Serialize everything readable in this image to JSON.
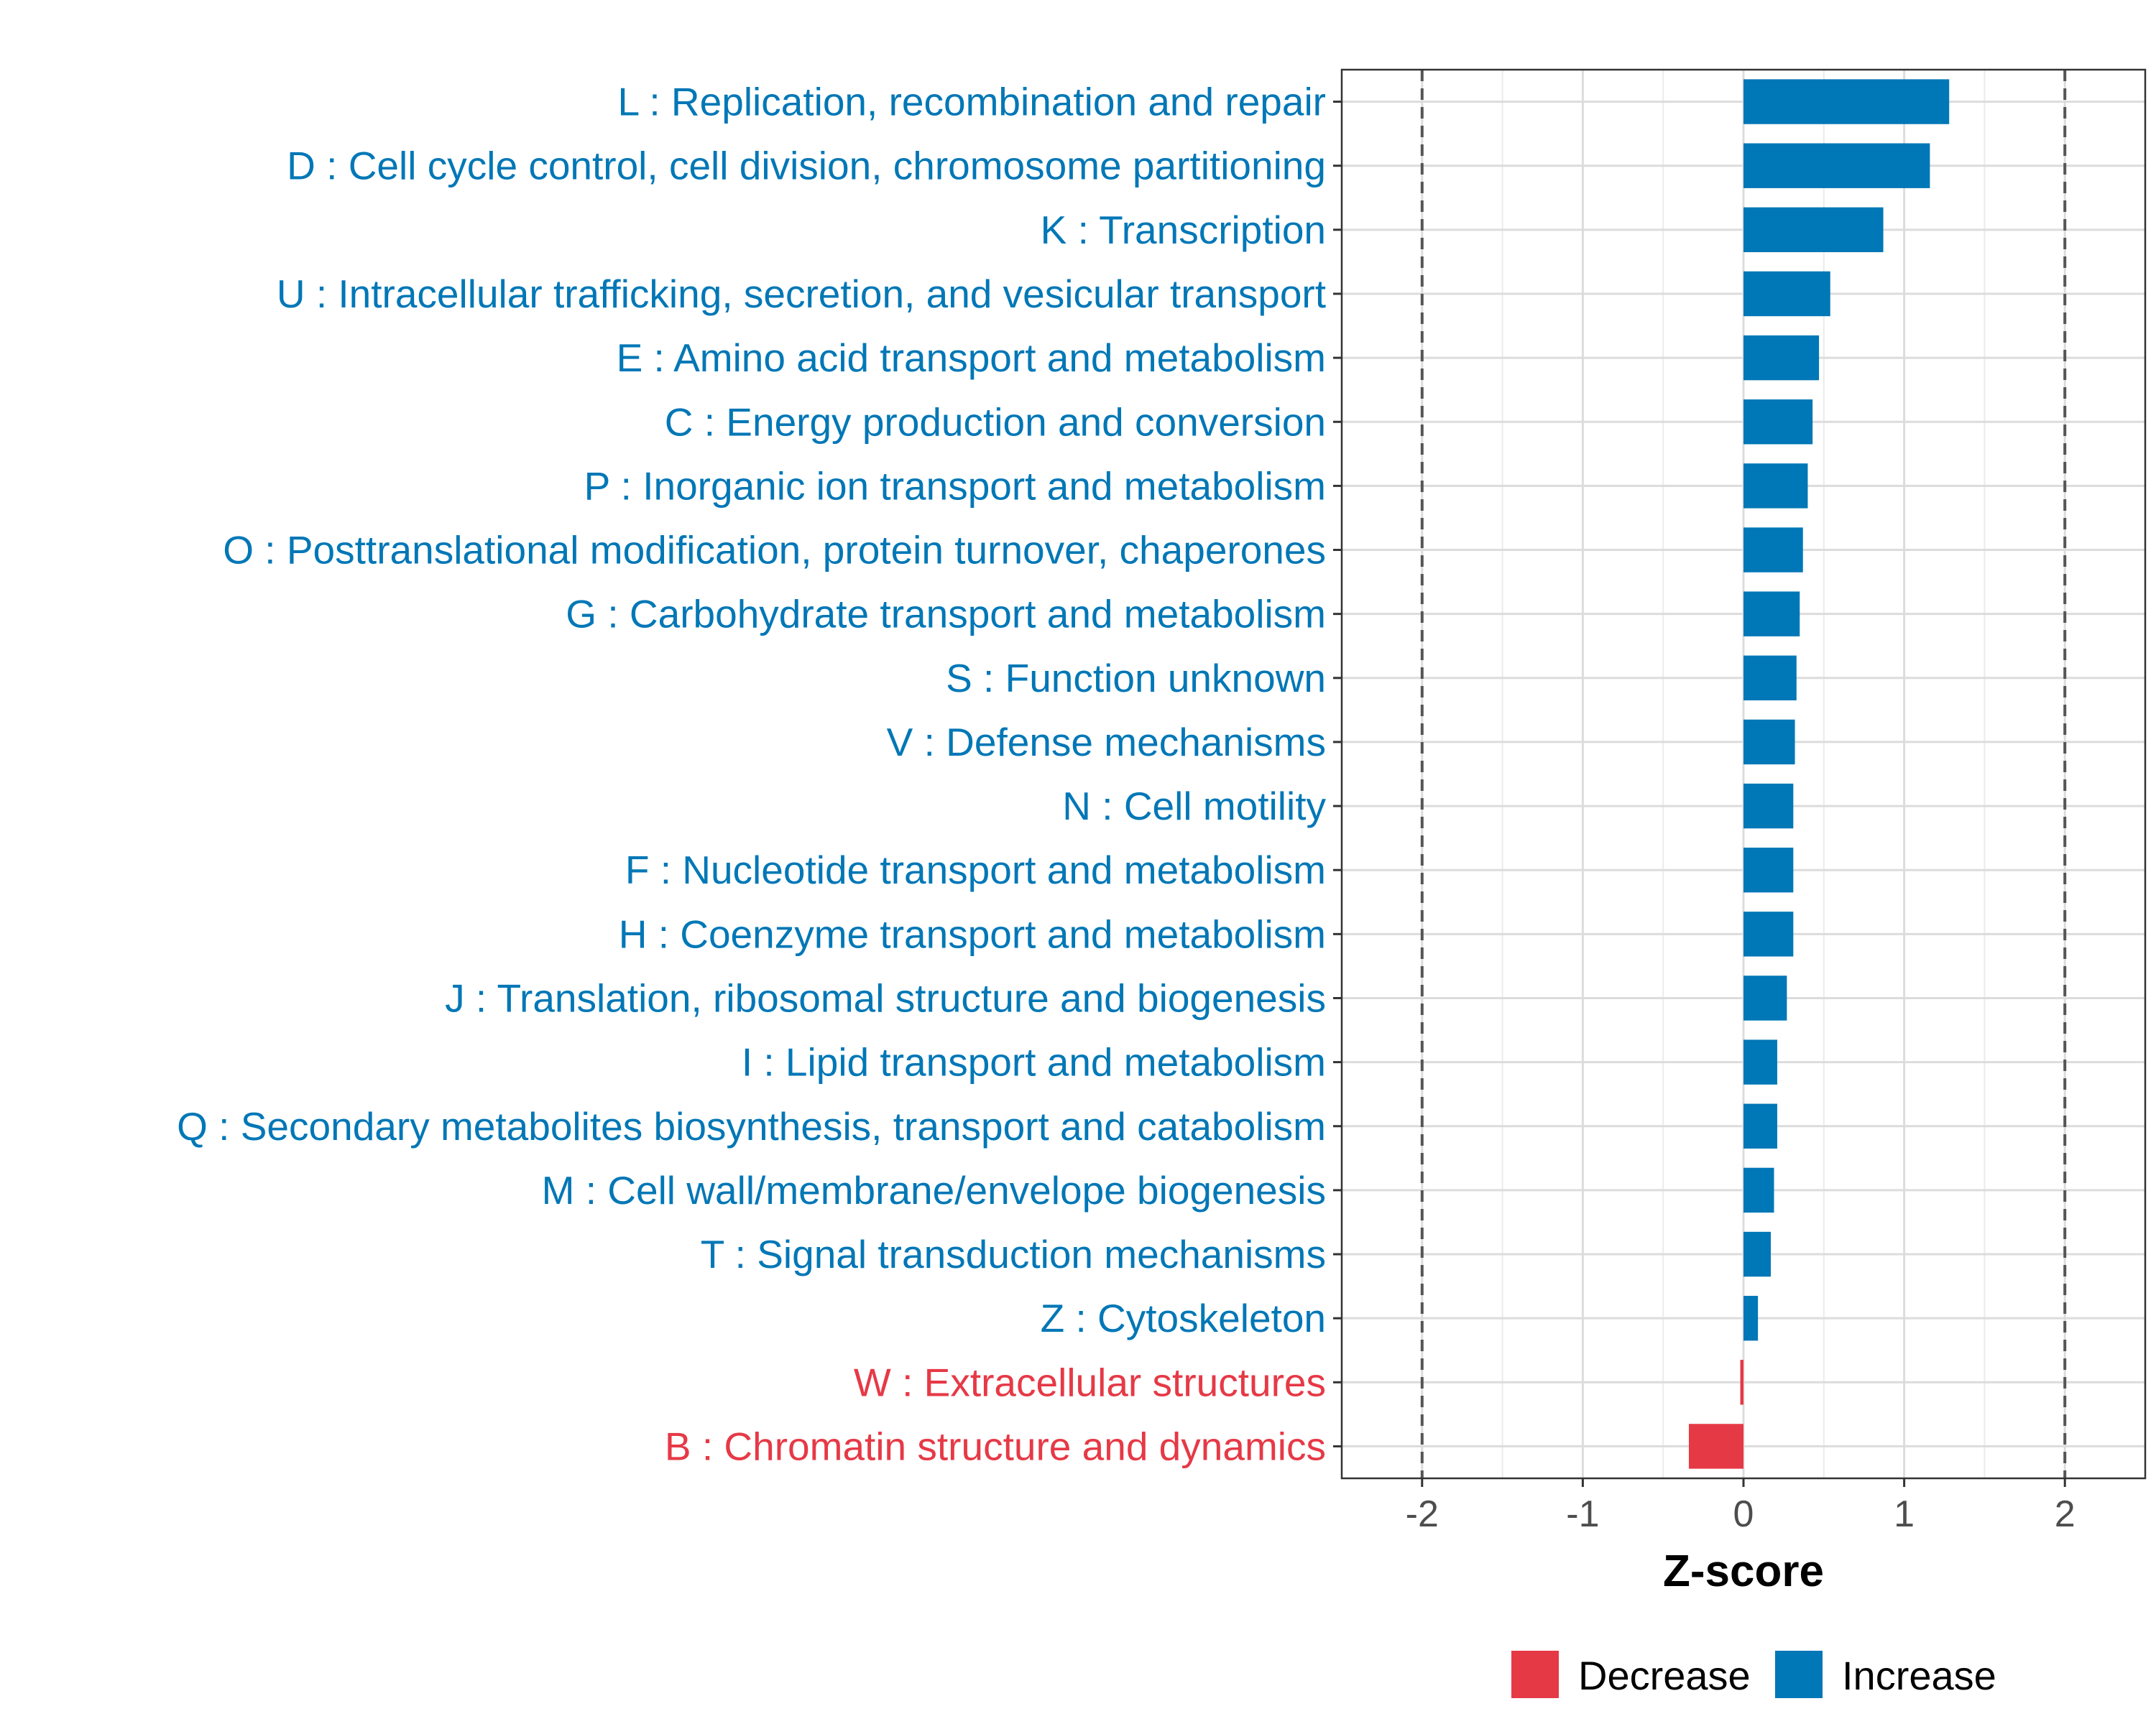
{
  "chart_data": {
    "type": "bar",
    "orientation": "horizontal",
    "xlabel": "Z-score",
    "xlim": [
      -2.5,
      2.5
    ],
    "xticks": [
      -2,
      -1,
      0,
      1,
      2
    ],
    "xtick_labels": [
      "-2",
      "-1",
      "0",
      "1",
      "2"
    ],
    "reference_lines": [
      -2,
      2
    ],
    "grid": true,
    "legend_position": "bottom",
    "colors": {
      "Decrease": "#E63946",
      "Increase": "#0077B6"
    },
    "categories": [
      "L : Replication, recombination and repair",
      "D : Cell cycle control, cell division, chromosome partitioning",
      "K : Transcription",
      "U : Intracellular trafficking, secretion, and vesicular transport",
      "E : Amino acid transport and metabolism",
      "C : Energy production and conversion",
      "P : Inorganic ion transport and metabolism",
      "O : Posttranslational modification, protein turnover, chaperones",
      "G : Carbohydrate transport and metabolism",
      "S : Function unknown",
      "V : Defense mechanisms",
      "N : Cell motility",
      "F : Nucleotide transport and metabolism",
      "H : Coenzyme transport and metabolism",
      "J : Translation, ribosomal structure and biogenesis",
      "I : Lipid transport and metabolism",
      "Q : Secondary metabolites biosynthesis, transport and catabolism",
      "M : Cell wall/membrane/envelope biogenesis",
      "T : Signal transduction mechanisms",
      "Z : Cytoskeleton",
      "W : Extracellular structures",
      "B : Chromatin structure and dynamics"
    ],
    "values": [
      1.28,
      1.16,
      0.87,
      0.54,
      0.47,
      0.43,
      0.4,
      0.37,
      0.35,
      0.33,
      0.32,
      0.31,
      0.31,
      0.31,
      0.27,
      0.21,
      0.21,
      0.19,
      0.17,
      0.09,
      -0.02,
      -0.34
    ],
    "groups": [
      "Increase",
      "Increase",
      "Increase",
      "Increase",
      "Increase",
      "Increase",
      "Increase",
      "Increase",
      "Increase",
      "Increase",
      "Increase",
      "Increase",
      "Increase",
      "Increase",
      "Increase",
      "Increase",
      "Increase",
      "Increase",
      "Increase",
      "Increase",
      "Decrease",
      "Decrease"
    ],
    "legend": [
      "Decrease",
      "Increase"
    ]
  }
}
